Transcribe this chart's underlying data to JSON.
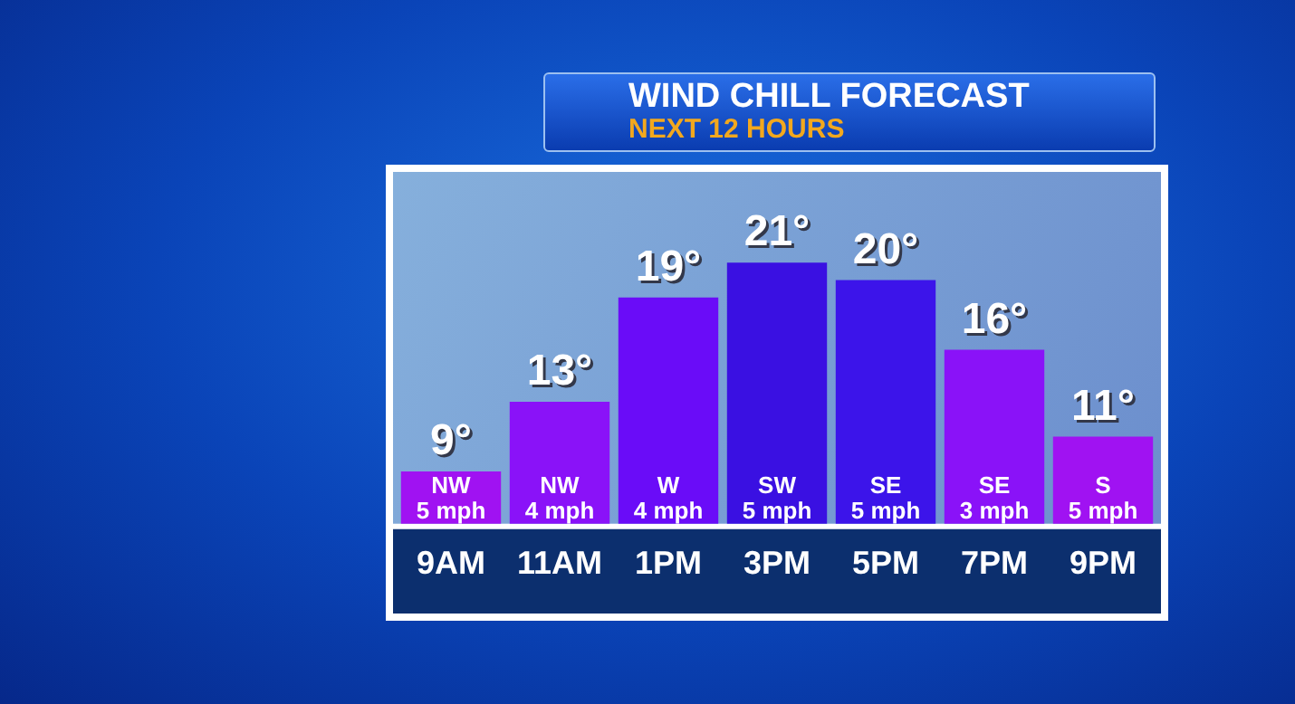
{
  "chart_data": {
    "type": "bar",
    "title": "WIND CHILL FORECAST",
    "subtitle": "NEXT 12 HOURS",
    "categories": [
      "9AM",
      "11AM",
      "1PM",
      "3PM",
      "5PM",
      "7PM",
      "9PM"
    ],
    "values": [
      9,
      13,
      19,
      21,
      20,
      16,
      11
    ],
    "colors": [
      "#a012f2",
      "#8a12f8",
      "#6a0cf8",
      "#3a10e2",
      "#3c14ea",
      "#8a12f8",
      "#a012f2"
    ],
    "value_labels": [
      "9°",
      "13°",
      "19°",
      "21°",
      "20°",
      "16°",
      "11°"
    ],
    "ylim": [
      6,
      26
    ],
    "annotations": [
      "NW\n5 mph",
      "NW\n4 mph",
      "W\n4 mph",
      "SW\n5 mph",
      "SE\n5 mph",
      "SE\n3 mph",
      "S\n5 mph"
    ],
    "grid": false,
    "legend": false
  }
}
